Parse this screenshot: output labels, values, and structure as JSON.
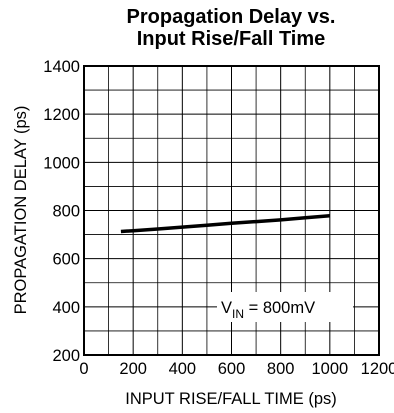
{
  "chart_data": {
    "type": "line",
    "title": [
      "Propagation Delay vs.",
      "Input Rise/Fall Time"
    ],
    "xlabel": "INPUT RISE/FALL TIME (ps)",
    "ylabel": "PROPAGATION DELAY (ps)",
    "xlim": [
      0,
      1200
    ],
    "ylim": [
      200,
      1400
    ],
    "xticks": [
      0,
      200,
      400,
      600,
      800,
      1000,
      1200
    ],
    "yticks": [
      200,
      400,
      600,
      800,
      1000,
      1200,
      1400
    ],
    "grid": true,
    "series": [
      {
        "x": [
          150,
          200,
          300,
          400,
          500,
          600,
          700,
          800,
          900,
          1000
        ],
        "y": [
          713,
          716,
          723,
          731,
          739,
          747,
          754,
          761,
          770,
          778
        ],
        "color": "#000000"
      }
    ],
    "annotation": {
      "main": "V",
      "subscript": "IN",
      "rest": " = 800mV"
    }
  }
}
